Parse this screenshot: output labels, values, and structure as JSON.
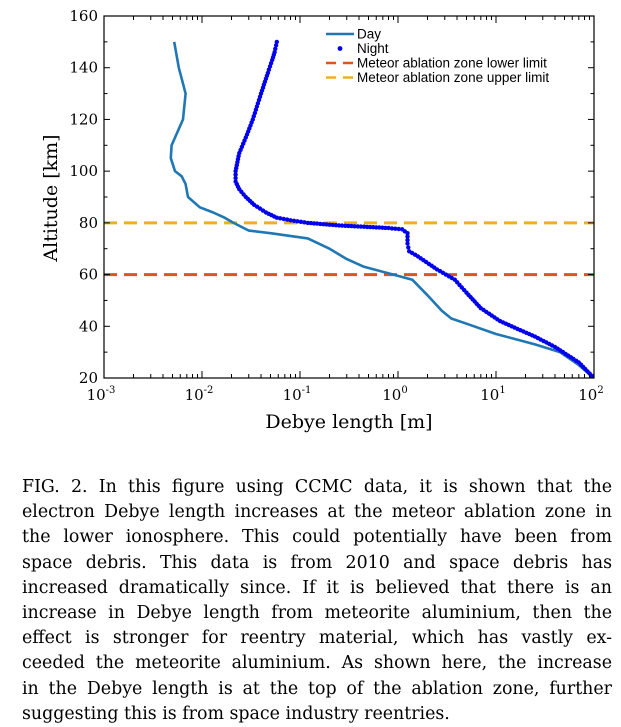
{
  "chart_data": {
    "type": "line",
    "xlabel": "Debye length [m]",
    "ylabel": "Altitude [km]",
    "x_scale": "log",
    "xlim": [
      0.001,
      100
    ],
    "ylim": [
      20,
      160
    ],
    "grid": false,
    "legend_position": "top-right",
    "x_ticks": [
      {
        "value": 0.001,
        "base": "10",
        "exp": "-3"
      },
      {
        "value": 0.01,
        "base": "10",
        "exp": "-2"
      },
      {
        "value": 0.1,
        "base": "10",
        "exp": "-1"
      },
      {
        "value": 1,
        "base": "10",
        "exp": "0"
      },
      {
        "value": 10,
        "base": "10",
        "exp": "1"
      },
      {
        "value": 100,
        "base": "10",
        "exp": "2"
      }
    ],
    "y_ticks": [
      "20",
      "40",
      "60",
      "80",
      "100",
      "120",
      "140",
      "160"
    ],
    "series": [
      {
        "name": "Day",
        "style": "line",
        "color": "#1f77b4",
        "points": [
          [
            0.0052,
            150
          ],
          [
            0.0058,
            140
          ],
          [
            0.0068,
            130
          ],
          [
            0.0064,
            120
          ],
          [
            0.0056,
            115
          ],
          [
            0.0049,
            110
          ],
          [
            0.0048,
            105
          ],
          [
            0.0053,
            100
          ],
          [
            0.0062,
            98
          ],
          [
            0.0068,
            95
          ],
          [
            0.0072,
            90
          ],
          [
            0.0095,
            86
          ],
          [
            0.013,
            84
          ],
          [
            0.017,
            82
          ],
          [
            0.021,
            80
          ],
          [
            0.03,
            77
          ],
          [
            0.05,
            76
          ],
          [
            0.12,
            74
          ],
          [
            0.2,
            70
          ],
          [
            0.3,
            66
          ],
          [
            0.45,
            63
          ],
          [
            0.9,
            60
          ],
          [
            1.4,
            58
          ],
          [
            2,
            52
          ],
          [
            2.8,
            46
          ],
          [
            3.5,
            43
          ],
          [
            5,
            41
          ],
          [
            10,
            37
          ],
          [
            25,
            33
          ],
          [
            45,
            30
          ],
          [
            70,
            25
          ],
          [
            100,
            20
          ]
        ]
      },
      {
        "name": "Night",
        "style": "dots",
        "color": "#0000ee",
        "points": [
          [
            0.058,
            150
          ],
          [
            0.055,
            146
          ],
          [
            0.052,
            143
          ],
          [
            0.047,
            138
          ],
          [
            0.04,
            130
          ],
          [
            0.033,
            120
          ],
          [
            0.028,
            113
          ],
          [
            0.024,
            107
          ],
          [
            0.022,
            100
          ],
          [
            0.022,
            96
          ],
          [
            0.024,
            93
          ],
          [
            0.028,
            90
          ],
          [
            0.034,
            87
          ],
          [
            0.045,
            84
          ],
          [
            0.058,
            82
          ],
          [
            0.08,
            81
          ],
          [
            0.12,
            80
          ],
          [
            0.25,
            79
          ],
          [
            0.45,
            78.5
          ],
          [
            0.8,
            78
          ],
          [
            1.1,
            77.5
          ],
          [
            1.25,
            76
          ],
          [
            1.25,
            72
          ],
          [
            1.3,
            69
          ],
          [
            1.6,
            67
          ],
          [
            2.5,
            62
          ],
          [
            3.8,
            58
          ],
          [
            5,
            53
          ],
          [
            7,
            47
          ],
          [
            11,
            42
          ],
          [
            25,
            36
          ],
          [
            40,
            32
          ],
          [
            70,
            26
          ],
          [
            100,
            20
          ]
        ]
      }
    ],
    "hlines": [
      {
        "name": "Meteor ablation zone lower limit",
        "y": 60,
        "color": "#e2521d",
        "style": "dashed"
      },
      {
        "name": "Meteor ablation zone upper limit",
        "y": 80,
        "color": "#edb120",
        "style": "dashed"
      }
    ]
  },
  "caption": {
    "lines": [
      "FIG. 2. In this figure using CCMC data, it is shown that the",
      "electron Debye length increases at the meteor ablation zone in",
      "the lower ionosphere. This could potentially have been from",
      "space debris. This data is from 2010 and space debris has",
      "increased dramatically since. If it is believed that there is an",
      "increase in Debye length from meteorite aluminium, then the",
      "effect is stronger for reentry material, which has vastly ex-",
      "ceeded the meteorite aluminium. As shown here, the increase",
      "in the Debye length is at the top of the ablation zone, further",
      "suggesting this is from space industry reentries."
    ]
  }
}
